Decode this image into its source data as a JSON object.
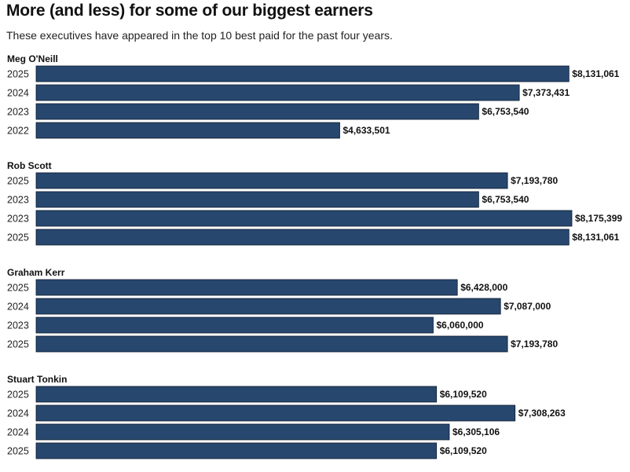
{
  "title": "More (and less) for some of our biggest earners",
  "subtitle": "These executives have appeared in the top 10 best paid for the past four years.",
  "colors": {
    "bar": "#27476e"
  },
  "chart_data": {
    "type": "bar",
    "orientation": "horizontal",
    "groups": [
      {
        "name": "Meg O'Neill",
        "bars": [
          {
            "year": "2025",
            "value": 8131061,
            "label": "$8,131,061"
          },
          {
            "year": "2024",
            "value": 7373431,
            "label": "$7,373,431"
          },
          {
            "year": "2023",
            "value": 6753540,
            "label": "$6,753,540"
          },
          {
            "year": "2022",
            "value": 4633501,
            "label": "$4,633,501"
          }
        ]
      },
      {
        "name": "Rob Scott",
        "bars": [
          {
            "year": "2025",
            "value": 7193780,
            "label": "$7,193,780"
          },
          {
            "year": "2023",
            "value": 6753540,
            "label": "$6,753,540"
          },
          {
            "year": "2023",
            "value": 8175399,
            "label": "$8,175,399"
          },
          {
            "year": "2025",
            "value": 8131061,
            "label": "$8,131,061"
          }
        ]
      },
      {
        "name": "Graham Kerr",
        "bars": [
          {
            "year": "2025",
            "value": 6428000,
            "label": "$6,428,000"
          },
          {
            "year": "2024",
            "value": 7087000,
            "label": "$7,087,000"
          },
          {
            "year": "2023",
            "value": 6060000,
            "label": "$6,060,000"
          },
          {
            "year": "2025",
            "value": 7193780,
            "label": "$7,193,780"
          }
        ]
      },
      {
        "name": "Stuart Tonkin",
        "bars": [
          {
            "year": "2025",
            "value": 6109520,
            "label": "$6,109,520"
          },
          {
            "year": "2024",
            "value": 7308263,
            "label": "$7,308,263"
          },
          {
            "year": "2024",
            "value": 6305106,
            "label": "$6,305,106"
          },
          {
            "year": "2025",
            "value": 6109520,
            "label": "$6,109,520"
          }
        ]
      }
    ],
    "xlim": [
      0,
      8175399
    ],
    "grid": false,
    "legend": "none"
  }
}
